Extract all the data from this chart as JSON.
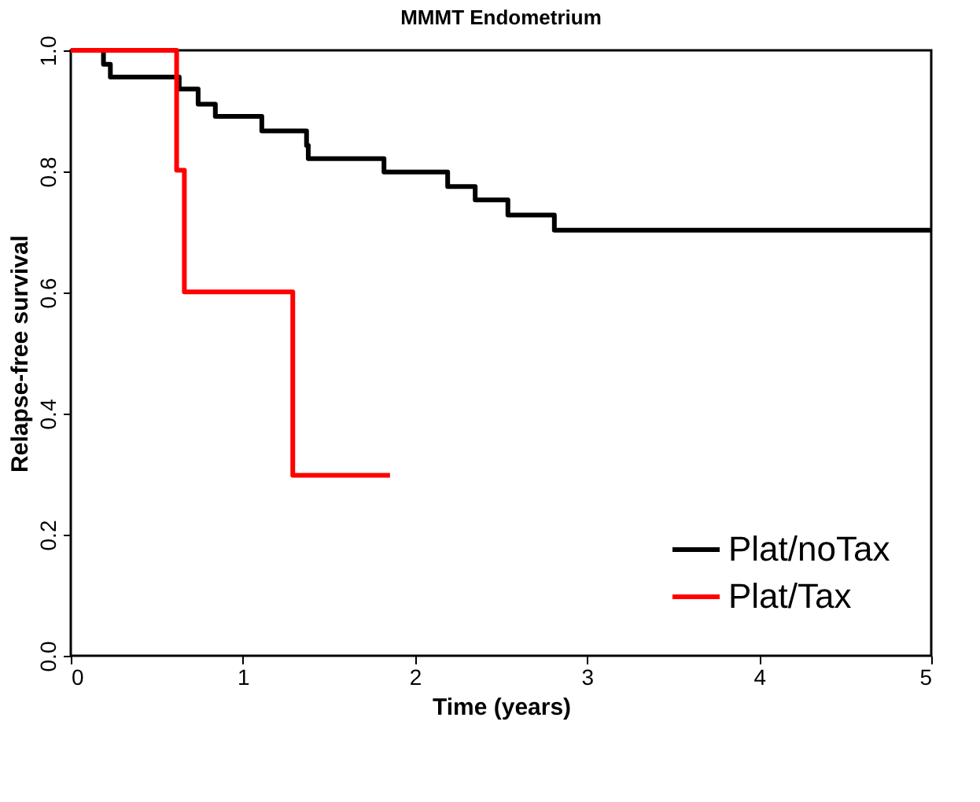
{
  "chart_data": {
    "type": "step",
    "title": "MMMT Endometrium",
    "xlabel": "Time (years)",
    "ylabel": "Relapse-free survival",
    "xlim": [
      0,
      5
    ],
    "xticks": [
      0,
      1,
      2,
      3,
      4,
      5
    ],
    "ylim": [
      0,
      1.0
    ],
    "yticks": [
      {
        "value": 0,
        "label": "0.0"
      },
      0.2,
      0.4,
      0.6,
      0.8,
      {
        "value": 1,
        "label": "1.0"
      }
    ],
    "grid": false,
    "legend": "bottom right",
    "marker": "none",
    "line_style": "solid",
    "series": [
      {
        "name": "Plat/noTax",
        "color": "#000000",
        "x": [
          0,
          0.19,
          0.23,
          0.63,
          0.74,
          0.84,
          1.11,
          1.37,
          1.38,
          1.82,
          2.19,
          2.35,
          2.54,
          2.81,
          5
        ],
        "values": [
          1.0,
          0.977,
          0.956,
          0.936,
          0.911,
          0.891,
          0.867,
          0.843,
          0.821,
          0.799,
          0.775,
          0.753,
          0.728,
          0.703,
          0.703
        ]
      },
      {
        "name": "Plat/Tax",
        "color": "#ff0000",
        "x": [
          0,
          0.615,
          0.66,
          1.29,
          1.855
        ],
        "values": [
          1.0,
          0.802,
          0.601,
          0.298,
          0.298
        ]
      }
    ]
  }
}
